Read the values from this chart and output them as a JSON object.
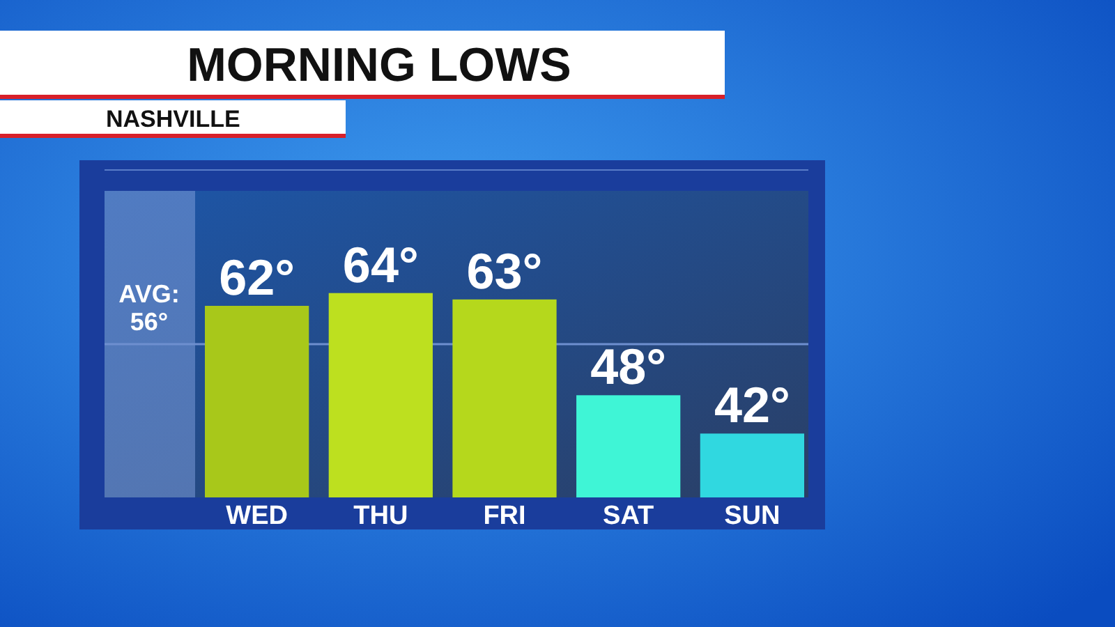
{
  "chart_data": {
    "type": "bar",
    "title": "MORNING LOWS",
    "subtitle": "NASHVILLE",
    "categories": [
      "WED",
      "THU",
      "FRI",
      "SAT",
      "SUN"
    ],
    "values": [
      62,
      64,
      63,
      48,
      42
    ],
    "colors": [
      "#a8c81a",
      "#bde01f",
      "#b5d81c",
      "#3ff5d6",
      "#30d8e0"
    ],
    "value_labels": [
      "62°",
      "64°",
      "63°",
      "48°",
      "42°"
    ],
    "ylim": [
      32,
      80
    ],
    "tick_labels": "x",
    "ref_lines": [
      {
        "axis": "y",
        "value": 56,
        "label": "AVG: 56°",
        "color": "#6e8fcf"
      }
    ]
  }
}
